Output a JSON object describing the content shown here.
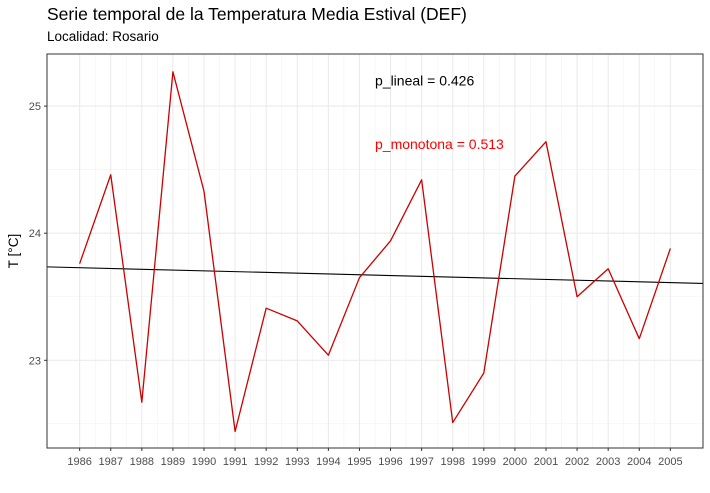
{
  "chart_data": {
    "type": "line",
    "title": "Serie temporal de la Temperatura Media Estival (DEF)",
    "subtitle": "Localidad: Rosario",
    "xlabel": "",
    "ylabel": "T [°C]",
    "x": [
      1986,
      1987,
      1988,
      1989,
      1990,
      1991,
      1992,
      1993,
      1994,
      1995,
      1996,
      1997,
      1998,
      1999,
      2000,
      2001,
      2002,
      2003,
      2004,
      2005
    ],
    "series": [
      {
        "values": [
          23.76,
          24.46,
          22.67,
          25.27,
          24.33,
          22.44,
          23.41,
          23.31,
          23.04,
          23.65,
          23.94,
          24.42,
          22.51,
          22.9,
          24.45,
          24.72,
          23.5,
          23.72,
          23.17,
          23.88
        ],
        "color": "#cc0000"
      }
    ],
    "trend": {
      "start": 23.735,
      "end": 23.605,
      "x_from": 1984.95,
      "x_to": 2006.05,
      "color": "#000000"
    },
    "ylim": [
      22.31,
      25.41
    ],
    "xlim": [
      1984.95,
      2006.05
    ],
    "yticks": [
      23,
      24,
      25
    ],
    "grid": true,
    "annotations": [
      {
        "text": "p_lineal = 0.426",
        "color": "#000000",
        "x": 1995.5,
        "y": 25.2
      },
      {
        "text": "p_monotona = 0.513",
        "color": "#ff0000",
        "x": 1995.5,
        "y": 24.7
      }
    ]
  }
}
